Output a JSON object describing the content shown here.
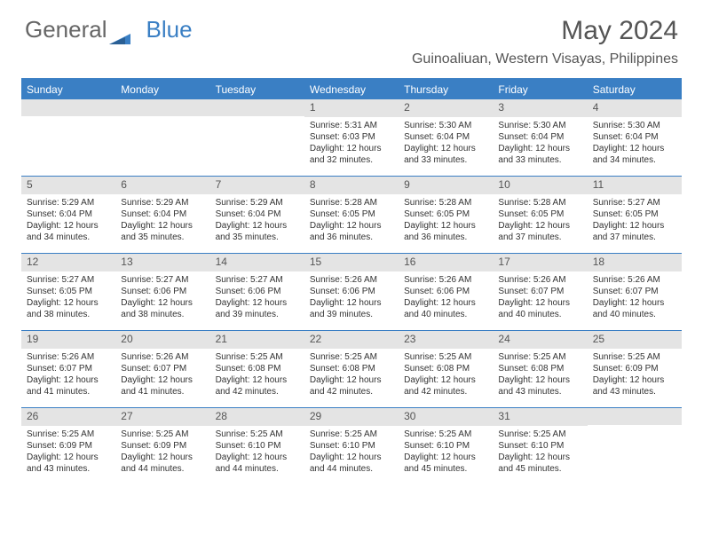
{
  "logo": {
    "general": "General",
    "blue": "Blue"
  },
  "title": "May 2024",
  "location": "Guinoaliuan, Western Visayas, Philippines",
  "colors": {
    "accent": "#3a7fc4",
    "header_text": "#ffffff",
    "day_number_bg": "#e4e4e4",
    "text": "#333333",
    "title_text": "#555555",
    "background": "#ffffff"
  },
  "typography": {
    "title_fontsize": 30,
    "location_fontsize": 16,
    "weekday_fontsize": 12,
    "daynum_fontsize": 12,
    "body_fontsize": 10
  },
  "weekdays": [
    "Sunday",
    "Monday",
    "Tuesday",
    "Wednesday",
    "Thursday",
    "Friday",
    "Saturday"
  ],
  "weeks": [
    [
      null,
      null,
      null,
      {
        "n": "1",
        "sunrise": "Sunrise: 5:31 AM",
        "sunset": "Sunset: 6:03 PM",
        "daylight": "Daylight: 12 hours and 32 minutes."
      },
      {
        "n": "2",
        "sunrise": "Sunrise: 5:30 AM",
        "sunset": "Sunset: 6:04 PM",
        "daylight": "Daylight: 12 hours and 33 minutes."
      },
      {
        "n": "3",
        "sunrise": "Sunrise: 5:30 AM",
        "sunset": "Sunset: 6:04 PM",
        "daylight": "Daylight: 12 hours and 33 minutes."
      },
      {
        "n": "4",
        "sunrise": "Sunrise: 5:30 AM",
        "sunset": "Sunset: 6:04 PM",
        "daylight": "Daylight: 12 hours and 34 minutes."
      }
    ],
    [
      {
        "n": "5",
        "sunrise": "Sunrise: 5:29 AM",
        "sunset": "Sunset: 6:04 PM",
        "daylight": "Daylight: 12 hours and 34 minutes."
      },
      {
        "n": "6",
        "sunrise": "Sunrise: 5:29 AM",
        "sunset": "Sunset: 6:04 PM",
        "daylight": "Daylight: 12 hours and 35 minutes."
      },
      {
        "n": "7",
        "sunrise": "Sunrise: 5:29 AM",
        "sunset": "Sunset: 6:04 PM",
        "daylight": "Daylight: 12 hours and 35 minutes."
      },
      {
        "n": "8",
        "sunrise": "Sunrise: 5:28 AM",
        "sunset": "Sunset: 6:05 PM",
        "daylight": "Daylight: 12 hours and 36 minutes."
      },
      {
        "n": "9",
        "sunrise": "Sunrise: 5:28 AM",
        "sunset": "Sunset: 6:05 PM",
        "daylight": "Daylight: 12 hours and 36 minutes."
      },
      {
        "n": "10",
        "sunrise": "Sunrise: 5:28 AM",
        "sunset": "Sunset: 6:05 PM",
        "daylight": "Daylight: 12 hours and 37 minutes."
      },
      {
        "n": "11",
        "sunrise": "Sunrise: 5:27 AM",
        "sunset": "Sunset: 6:05 PM",
        "daylight": "Daylight: 12 hours and 37 minutes."
      }
    ],
    [
      {
        "n": "12",
        "sunrise": "Sunrise: 5:27 AM",
        "sunset": "Sunset: 6:05 PM",
        "daylight": "Daylight: 12 hours and 38 minutes."
      },
      {
        "n": "13",
        "sunrise": "Sunrise: 5:27 AM",
        "sunset": "Sunset: 6:06 PM",
        "daylight": "Daylight: 12 hours and 38 minutes."
      },
      {
        "n": "14",
        "sunrise": "Sunrise: 5:27 AM",
        "sunset": "Sunset: 6:06 PM",
        "daylight": "Daylight: 12 hours and 39 minutes."
      },
      {
        "n": "15",
        "sunrise": "Sunrise: 5:26 AM",
        "sunset": "Sunset: 6:06 PM",
        "daylight": "Daylight: 12 hours and 39 minutes."
      },
      {
        "n": "16",
        "sunrise": "Sunrise: 5:26 AM",
        "sunset": "Sunset: 6:06 PM",
        "daylight": "Daylight: 12 hours and 40 minutes."
      },
      {
        "n": "17",
        "sunrise": "Sunrise: 5:26 AM",
        "sunset": "Sunset: 6:07 PM",
        "daylight": "Daylight: 12 hours and 40 minutes."
      },
      {
        "n": "18",
        "sunrise": "Sunrise: 5:26 AM",
        "sunset": "Sunset: 6:07 PM",
        "daylight": "Daylight: 12 hours and 40 minutes."
      }
    ],
    [
      {
        "n": "19",
        "sunrise": "Sunrise: 5:26 AM",
        "sunset": "Sunset: 6:07 PM",
        "daylight": "Daylight: 12 hours and 41 minutes."
      },
      {
        "n": "20",
        "sunrise": "Sunrise: 5:26 AM",
        "sunset": "Sunset: 6:07 PM",
        "daylight": "Daylight: 12 hours and 41 minutes."
      },
      {
        "n": "21",
        "sunrise": "Sunrise: 5:25 AM",
        "sunset": "Sunset: 6:08 PM",
        "daylight": "Daylight: 12 hours and 42 minutes."
      },
      {
        "n": "22",
        "sunrise": "Sunrise: 5:25 AM",
        "sunset": "Sunset: 6:08 PM",
        "daylight": "Daylight: 12 hours and 42 minutes."
      },
      {
        "n": "23",
        "sunrise": "Sunrise: 5:25 AM",
        "sunset": "Sunset: 6:08 PM",
        "daylight": "Daylight: 12 hours and 42 minutes."
      },
      {
        "n": "24",
        "sunrise": "Sunrise: 5:25 AM",
        "sunset": "Sunset: 6:08 PM",
        "daylight": "Daylight: 12 hours and 43 minutes."
      },
      {
        "n": "25",
        "sunrise": "Sunrise: 5:25 AM",
        "sunset": "Sunset: 6:09 PM",
        "daylight": "Daylight: 12 hours and 43 minutes."
      }
    ],
    [
      {
        "n": "26",
        "sunrise": "Sunrise: 5:25 AM",
        "sunset": "Sunset: 6:09 PM",
        "daylight": "Daylight: 12 hours and 43 minutes."
      },
      {
        "n": "27",
        "sunrise": "Sunrise: 5:25 AM",
        "sunset": "Sunset: 6:09 PM",
        "daylight": "Daylight: 12 hours and 44 minutes."
      },
      {
        "n": "28",
        "sunrise": "Sunrise: 5:25 AM",
        "sunset": "Sunset: 6:10 PM",
        "daylight": "Daylight: 12 hours and 44 minutes."
      },
      {
        "n": "29",
        "sunrise": "Sunrise: 5:25 AM",
        "sunset": "Sunset: 6:10 PM",
        "daylight": "Daylight: 12 hours and 44 minutes."
      },
      {
        "n": "30",
        "sunrise": "Sunrise: 5:25 AM",
        "sunset": "Sunset: 6:10 PM",
        "daylight": "Daylight: 12 hours and 45 minutes."
      },
      {
        "n": "31",
        "sunrise": "Sunrise: 5:25 AM",
        "sunset": "Sunset: 6:10 PM",
        "daylight": "Daylight: 12 hours and 45 minutes."
      },
      null
    ]
  ]
}
